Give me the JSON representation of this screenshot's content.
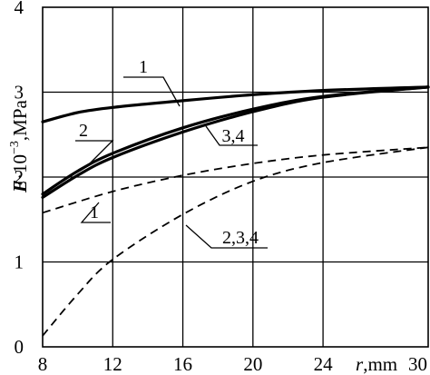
{
  "chart_data": {
    "type": "line",
    "title": "",
    "xlabel_var": "r",
    "xlabel_unit": ",mm",
    "ylabel_var": "E",
    "ylabel_mid": "·10",
    "ylabel_exp": "−3",
    "ylabel_unit": ",MPa",
    "xlim": [
      8,
      30
    ],
    "ylim": [
      0,
      4
    ],
    "xticks": [
      8,
      12,
      16,
      20,
      24,
      30
    ],
    "yticks": [
      0,
      1,
      2,
      3,
      4
    ],
    "grid": true,
    "legend": "none",
    "series": [
      {
        "label": "1",
        "style": "solid",
        "stroke": 3.2,
        "x": [
          8,
          10,
          12,
          16,
          20,
          24,
          30
        ],
        "y": [
          2.65,
          2.76,
          2.82,
          2.9,
          2.97,
          3.02,
          3.06
        ]
      },
      {
        "label": "2",
        "style": "solid",
        "stroke": 3.2,
        "x": [
          8,
          10,
          12,
          16,
          20,
          24,
          30
        ],
        "y": [
          1.8,
          2.07,
          2.28,
          2.58,
          2.8,
          2.95,
          3.06
        ]
      },
      {
        "label": "3,4",
        "style": "solid",
        "stroke": 3.2,
        "x": [
          8,
          10,
          12,
          16,
          20,
          24,
          30
        ],
        "y": [
          1.76,
          2.02,
          2.23,
          2.53,
          2.77,
          2.94,
          3.06
        ]
      },
      {
        "label": "1",
        "style": "dashed",
        "stroke": 1.8,
        "x": [
          8,
          12,
          16,
          20,
          24,
          30
        ],
        "y": [
          1.58,
          1.83,
          2.02,
          2.16,
          2.26,
          2.35
        ]
      },
      {
        "label": "2,3,4",
        "style": "dashed",
        "stroke": 1.8,
        "x": [
          8,
          10,
          12,
          16,
          20,
          24,
          30
        ],
        "y": [
          0.13,
          0.62,
          1.03,
          1.56,
          1.95,
          2.17,
          2.35
        ]
      }
    ],
    "annotations": [
      {
        "text": "1",
        "target": 0
      },
      {
        "text": "2",
        "target": 1
      },
      {
        "text": "3,4",
        "target": 2
      },
      {
        "text": "1",
        "target": 3
      },
      {
        "text": "2,3,4",
        "target": 4
      }
    ]
  }
}
